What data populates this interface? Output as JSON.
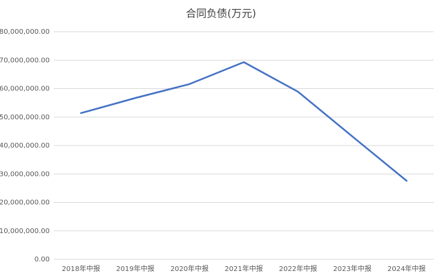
{
  "chart_data": {
    "type": "line",
    "title": "合同负债(万元)",
    "categories": [
      "2018年中报",
      "2019年中报",
      "2020年中报",
      "2021年中报",
      "2022年中报",
      "2023年中报",
      "2024年中报"
    ],
    "series": [
      {
        "name": "合同负债",
        "color": "#4472c4",
        "values": [
          51400000,
          56700000,
          61600000,
          69300000,
          58900000,
          43200000,
          27600000
        ]
      }
    ],
    "ylim": [
      0,
      80000000
    ],
    "yticks": [
      {
        "value": 0,
        "label": "0.00"
      },
      {
        "value": 10000000,
        "label": "10,000,000.00"
      },
      {
        "value": 20000000,
        "label": "20,000,000.00"
      },
      {
        "value": 30000000,
        "label": "30,000,000.00"
      },
      {
        "value": 40000000,
        "label": "40,000,000.00"
      },
      {
        "value": 50000000,
        "label": "50,000,000.00"
      },
      {
        "value": 60000000,
        "label": "60,000,000.00"
      },
      {
        "value": 70000000,
        "label": "70,000,000.00"
      },
      {
        "value": 80000000,
        "label": "80,000,000.00"
      }
    ],
    "grid": true
  }
}
